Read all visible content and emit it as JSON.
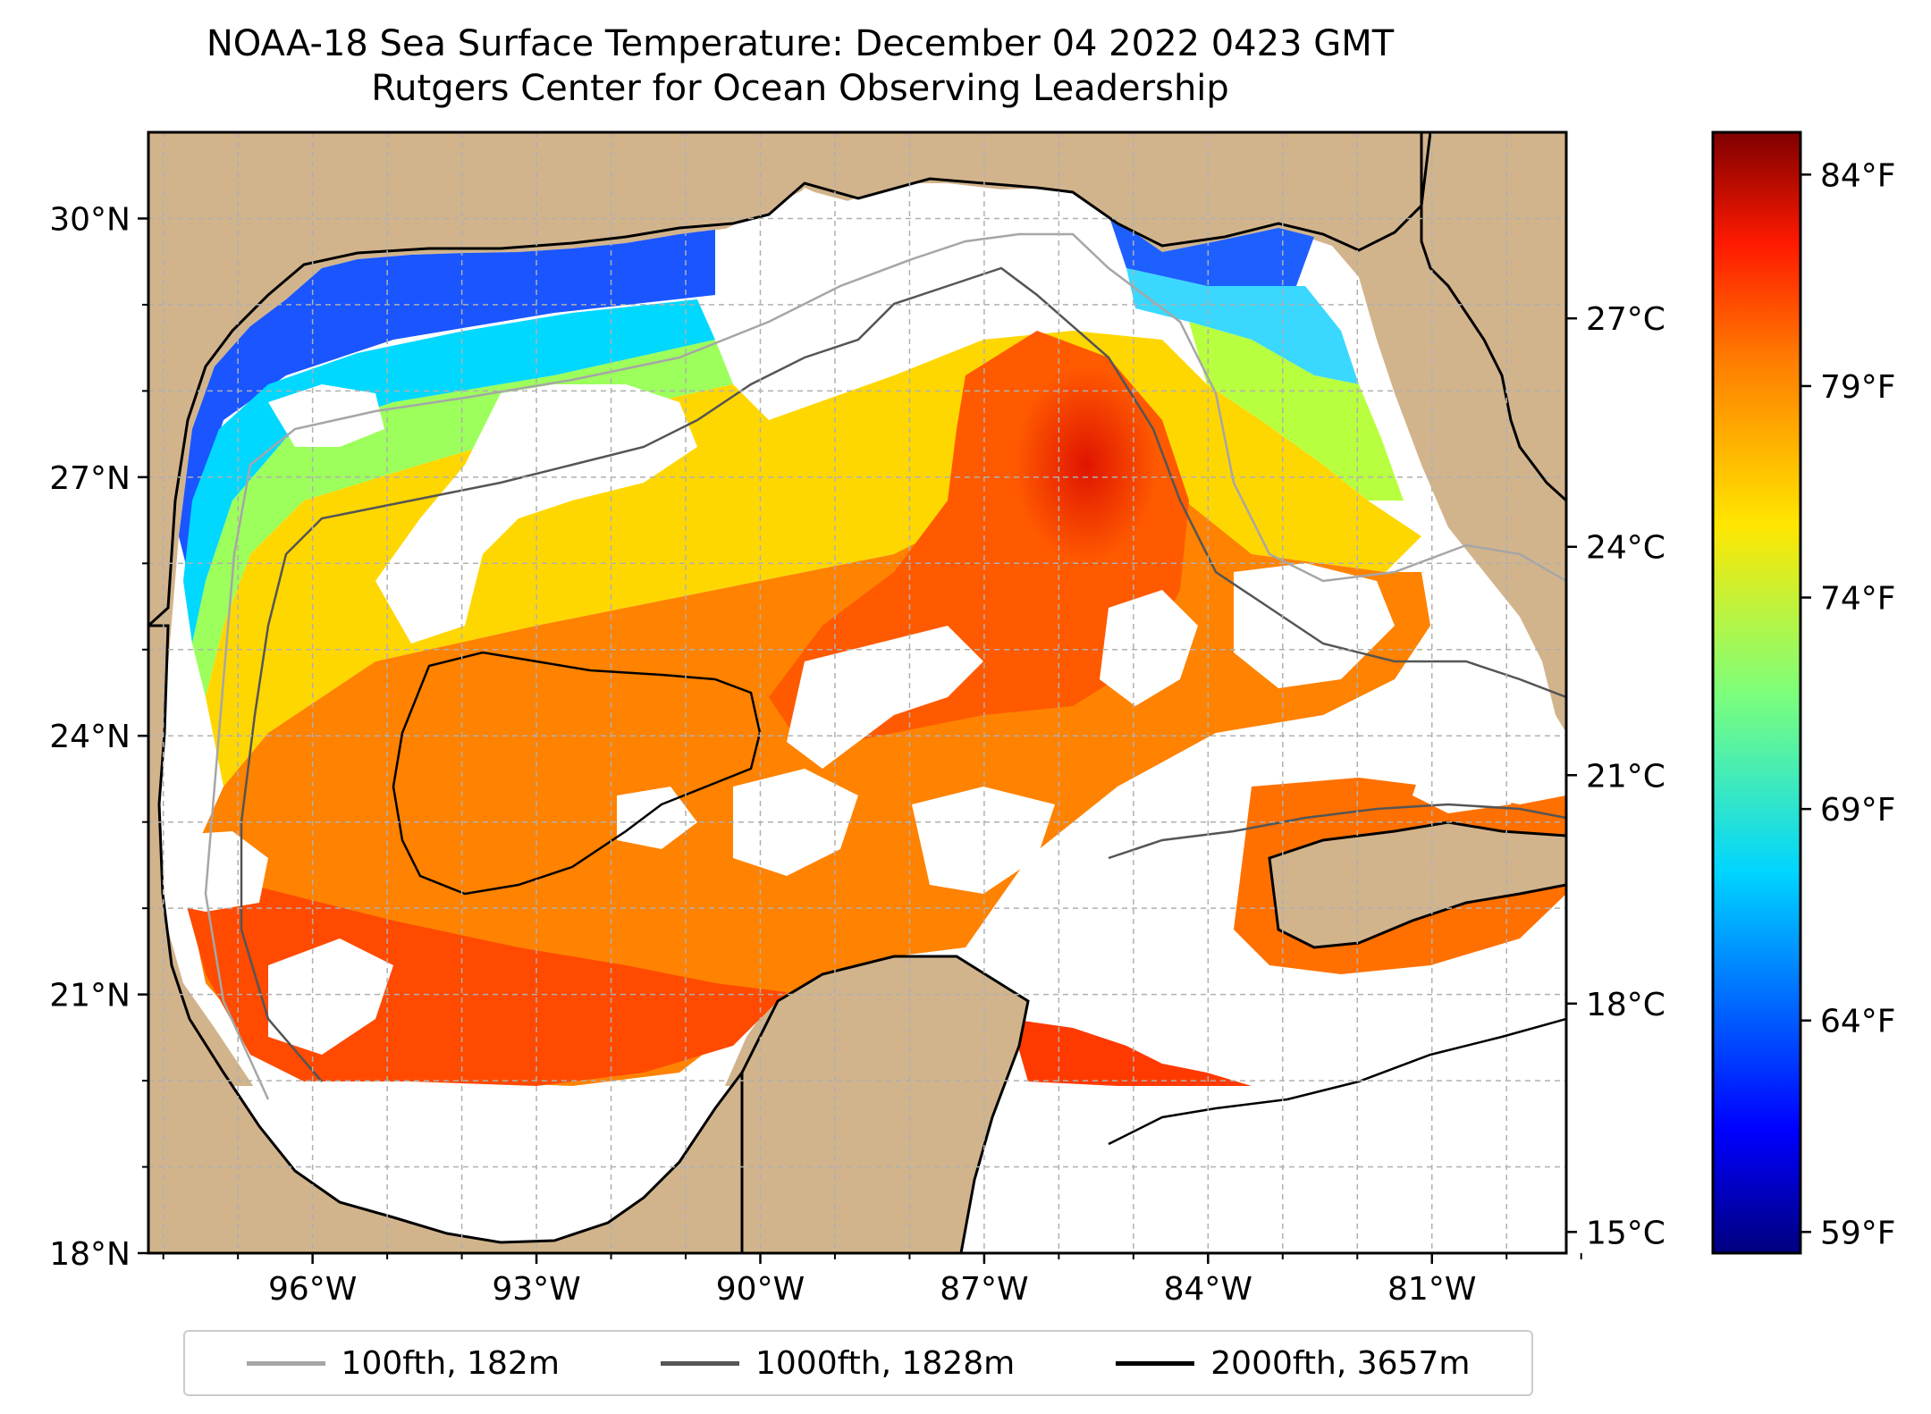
{
  "title_line1": "NOAA-18 Sea Surface Temperature: December 04 2022 0423 GMT",
  "title_line2": "Rutgers Center for Ocean Observing Leadership",
  "chart_data": {
    "type": "heatmap",
    "lon_range": [
      -98.2,
      -79.2
    ],
    "lat_range": [
      18,
      31
    ],
    "lat_ticks": [
      {
        "value": 18,
        "label": "18°N"
      },
      {
        "value": 21,
        "label": "21°N"
      },
      {
        "value": 24,
        "label": "24°N"
      },
      {
        "value": 27,
        "label": "27°N"
      },
      {
        "value": 30,
        "label": "30°N"
      }
    ],
    "lon_ticks": [
      {
        "value": -96,
        "label": "96°W"
      },
      {
        "value": -93,
        "label": "93°W"
      },
      {
        "value": -90,
        "label": "90°W"
      },
      {
        "value": -87,
        "label": "87°W"
      },
      {
        "value": -84,
        "label": "84°W"
      },
      {
        "value": -81,
        "label": "81°W"
      }
    ],
    "grid": true,
    "colorbar": {
      "range_f": [
        58.5,
        85
      ],
      "colormap": "jet",
      "celsius_ticks": [
        {
          "value": 15,
          "label": "15°C"
        },
        {
          "value": 18,
          "label": "18°C"
        },
        {
          "value": 21,
          "label": "21°C"
        },
        {
          "value": 24,
          "label": "24°C"
        },
        {
          "value": 27,
          "label": "27°C"
        }
      ],
      "fahrenheit_ticks": [
        {
          "value": 59,
          "label": "59°F"
        },
        {
          "value": 64,
          "label": "64°F"
        },
        {
          "value": 69,
          "label": "69°F"
        },
        {
          "value": 74,
          "label": "74°F"
        },
        {
          "value": 79,
          "label": "79°F"
        },
        {
          "value": 84,
          "label": "84°F"
        }
      ]
    },
    "legend": [
      {
        "label": "100fth, 182m",
        "color": "#a6a6a6"
      },
      {
        "label": "1000fth, 1828m",
        "color": "#555555"
      },
      {
        "label": "2000fth, 3657m",
        "color": "#000000"
      }
    ],
    "legend_position": "bottom"
  },
  "colors": {
    "land": "#d2b48c",
    "cloud": "#ffffff",
    "gridline": "#b0b0b0"
  }
}
